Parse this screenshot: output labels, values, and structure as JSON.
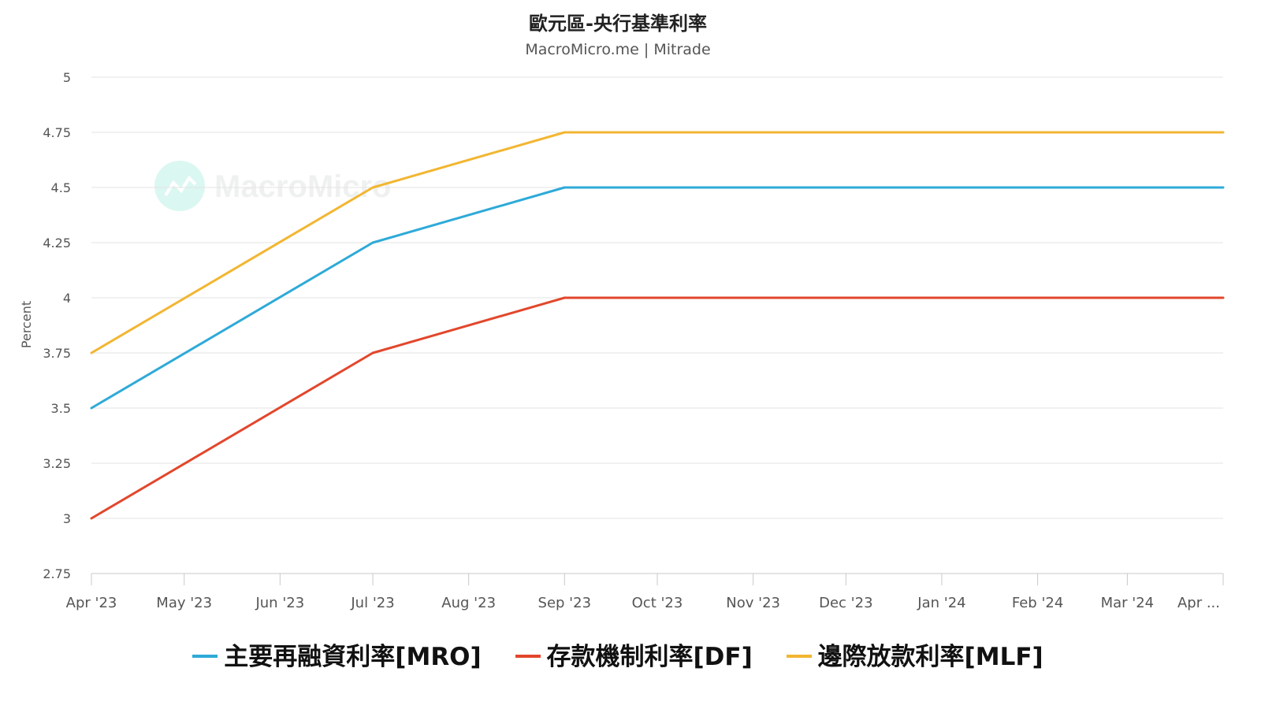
{
  "header": {
    "title": "歐元區-央行基準利率",
    "subtitle": "MacroMicro.me | Mitrade"
  },
  "watermark": {
    "text": "MacroMicro"
  },
  "chart_data": {
    "type": "line",
    "title": "歐元區-央行基準利率",
    "subtitle": "MacroMicro.me | Mitrade",
    "ylabel": "Percent",
    "xlabel": "",
    "ylim": [
      2.75,
      5
    ],
    "yticks": [
      "5",
      "4.75",
      "4.5",
      "4.25",
      "4",
      "3.75",
      "3.5",
      "3.25",
      "3",
      "2.75"
    ],
    "xticks": [
      "Apr '23",
      "May '23",
      "Jun '23",
      "Jul '23",
      "Aug '23",
      "Sep '23",
      "Oct '23",
      "Nov '23",
      "Dec '23",
      "Jan '24",
      "Feb '24",
      "Mar '24",
      "Apr ..."
    ],
    "grid": true,
    "legend_position": "bottom",
    "series": [
      {
        "name": "主要再融資利率[MRO]",
        "color": "#2eaad8",
        "points": [
          [
            "2023-04-01",
            3.5
          ],
          [
            "2023-07-01",
            4.25
          ],
          [
            "2023-09-01",
            4.5
          ],
          [
            "2024-04-01",
            4.5
          ]
        ]
      },
      {
        "name": "存款機制利率[DF]",
        "color": "#e2472c",
        "points": [
          [
            "2023-04-01",
            3.0
          ],
          [
            "2023-07-01",
            3.75
          ],
          [
            "2023-09-01",
            4.0
          ],
          [
            "2024-04-01",
            4.0
          ]
        ]
      },
      {
        "name": "邊際放款利率[MLF]",
        "color": "#f2b632",
        "points": [
          [
            "2023-04-01",
            3.75
          ],
          [
            "2023-07-01",
            4.5
          ],
          [
            "2023-09-01",
            4.75
          ],
          [
            "2024-04-01",
            4.75
          ]
        ]
      }
    ]
  }
}
